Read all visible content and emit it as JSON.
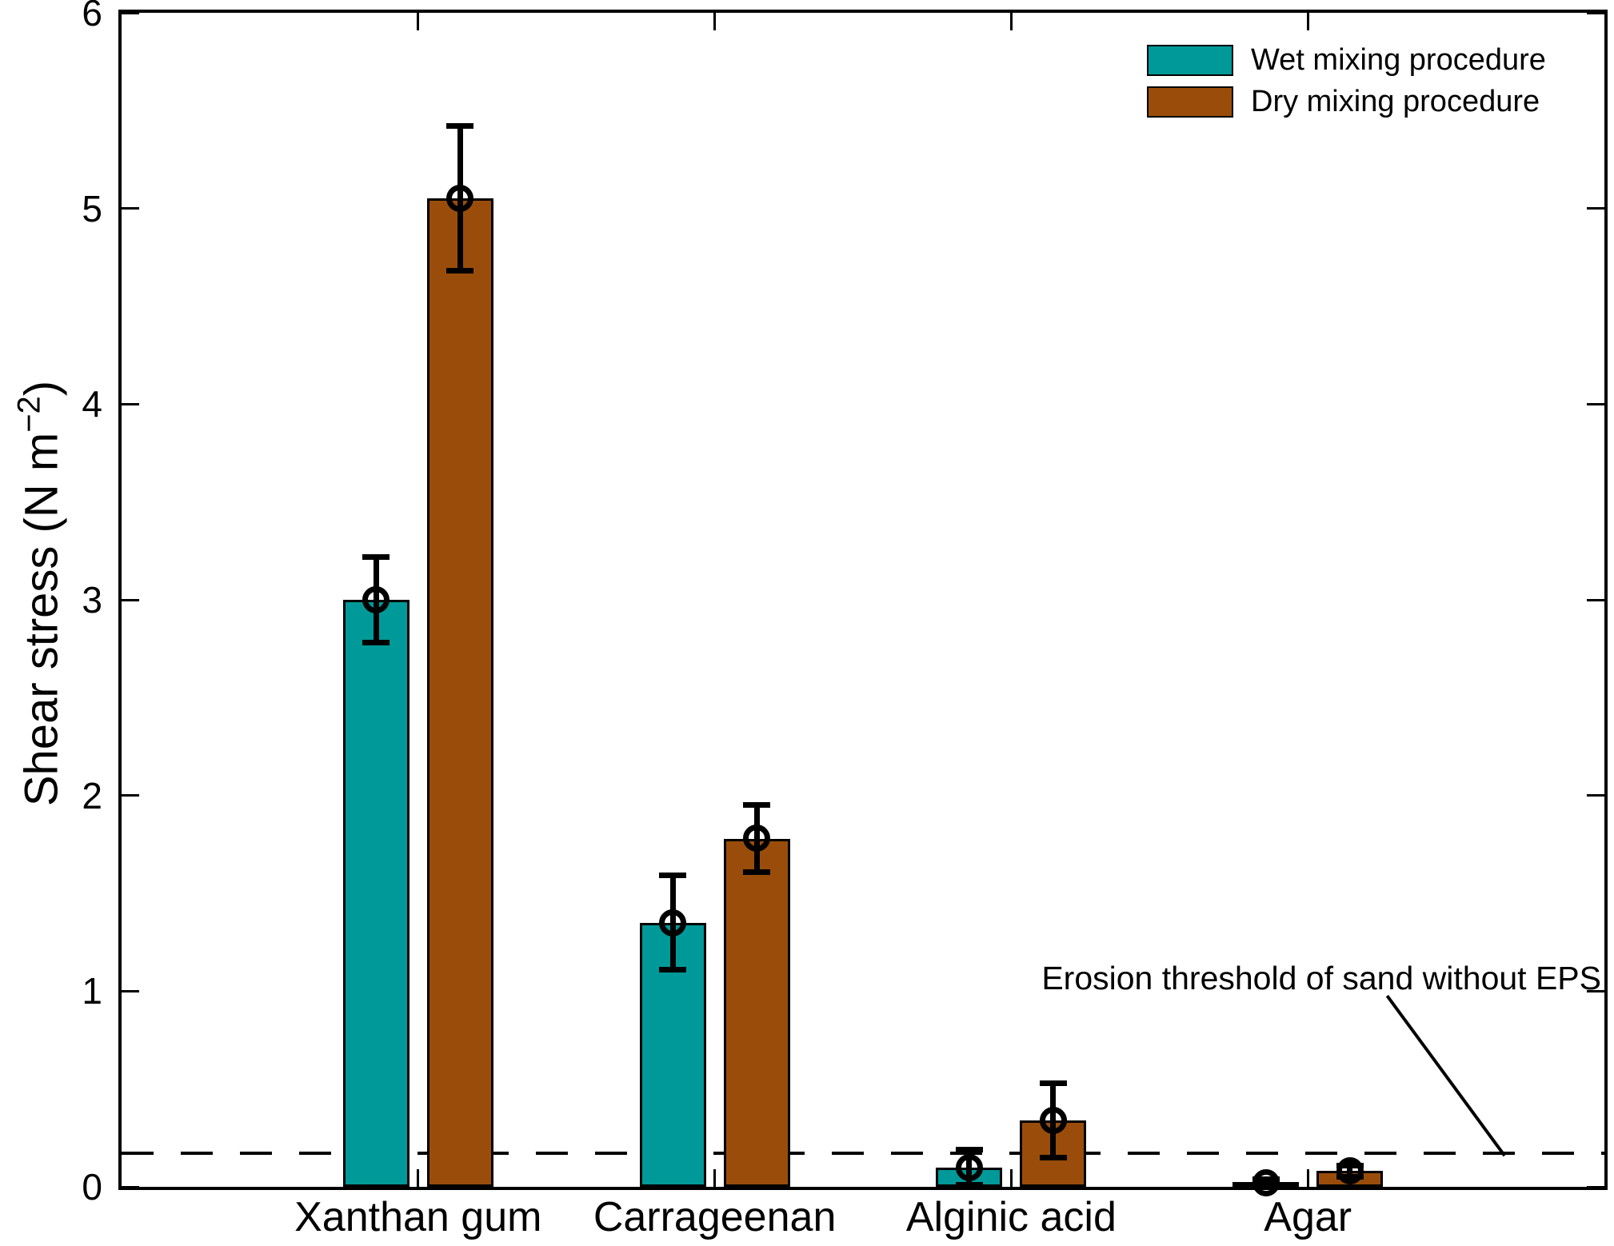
{
  "chart_data": {
    "type": "bar",
    "categories": [
      "Xanthan gum",
      "Carrageenan",
      "Alginic acid",
      "Agar"
    ],
    "series": [
      {
        "name": "Wet mixing procedure",
        "color": "#009999",
        "values": [
          3.0,
          1.35,
          0.1,
          0.02
        ],
        "errors": [
          0.22,
          0.24,
          0.09,
          0.02
        ]
      },
      {
        "name": "Dry mixing procedure",
        "color": "#9A4D0A",
        "values": [
          5.05,
          1.78,
          0.34,
          0.08
        ],
        "errors": [
          0.37,
          0.17,
          0.19,
          0.03
        ]
      }
    ],
    "title": "",
    "xlabel": "",
    "ylabel": "Shear stress (N m−2)",
    "ylabel_parts": {
      "main": "Shear stress (N m",
      "sup": "−2",
      "close": ")"
    },
    "ylim": [
      0,
      6
    ],
    "yticks": [
      0,
      1,
      2,
      3,
      4,
      5,
      6
    ],
    "grid": false,
    "legend_position": "top-right",
    "marker": "open-circle",
    "error_bars": true,
    "axis_color": "#000000",
    "background_color": "#FFFFFF",
    "threshold": {
      "value": 0.17,
      "style": "dashed",
      "label": "Erosion threshold of sand without EPS"
    }
  }
}
